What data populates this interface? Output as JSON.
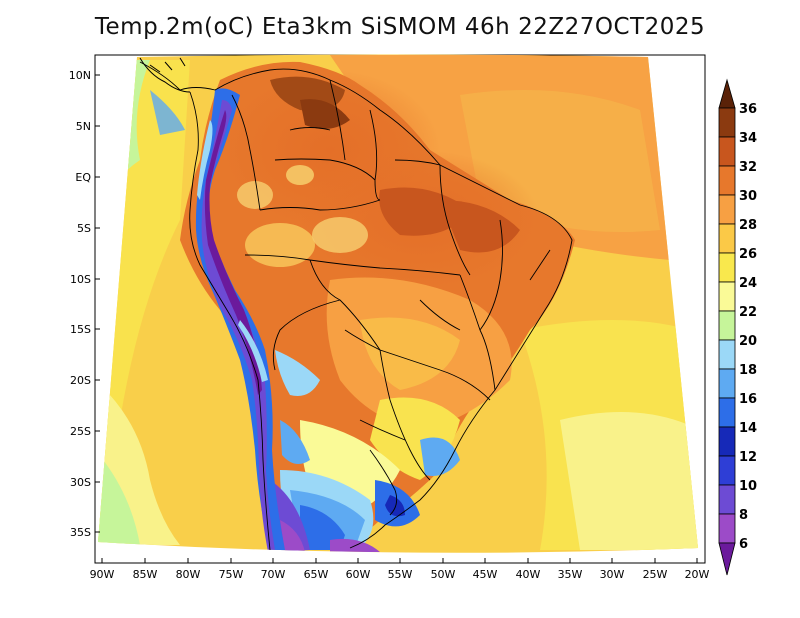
{
  "title": "Temp.2m(oC) Eta3km SiSMOM 46h 22Z27OCT2025",
  "latitude_labels": [
    "10N",
    "5N",
    "EQ",
    "5S",
    "10S",
    "15S",
    "20S",
    "25S",
    "30S",
    "35S"
  ],
  "longitude_labels": [
    "90W",
    "85W",
    "80W",
    "75W",
    "70W",
    "65W",
    "60W",
    "55W",
    "50W",
    "45W",
    "40W",
    "35W",
    "30W",
    "25W",
    "20W"
  ],
  "colorbar": {
    "labels": [
      "36",
      "34",
      "32",
      "30",
      "28",
      "26",
      "24",
      "22",
      "20",
      "18",
      "16",
      "14",
      "12",
      "10",
      "8",
      "6"
    ],
    "colors": [
      "#5a2208",
      "#8b3a10",
      "#c8561e",
      "#e7782c",
      "#f7a043",
      "#fbc947",
      "#f9e84d",
      "#fafa97",
      "#c6f59a",
      "#9bd8f7",
      "#5eaaf2",
      "#2d6ee8",
      "#1629b8",
      "#2e3ed6",
      "#6d4bd4",
      "#9c4bc8",
      "#6b1a9c"
    ]
  }
}
